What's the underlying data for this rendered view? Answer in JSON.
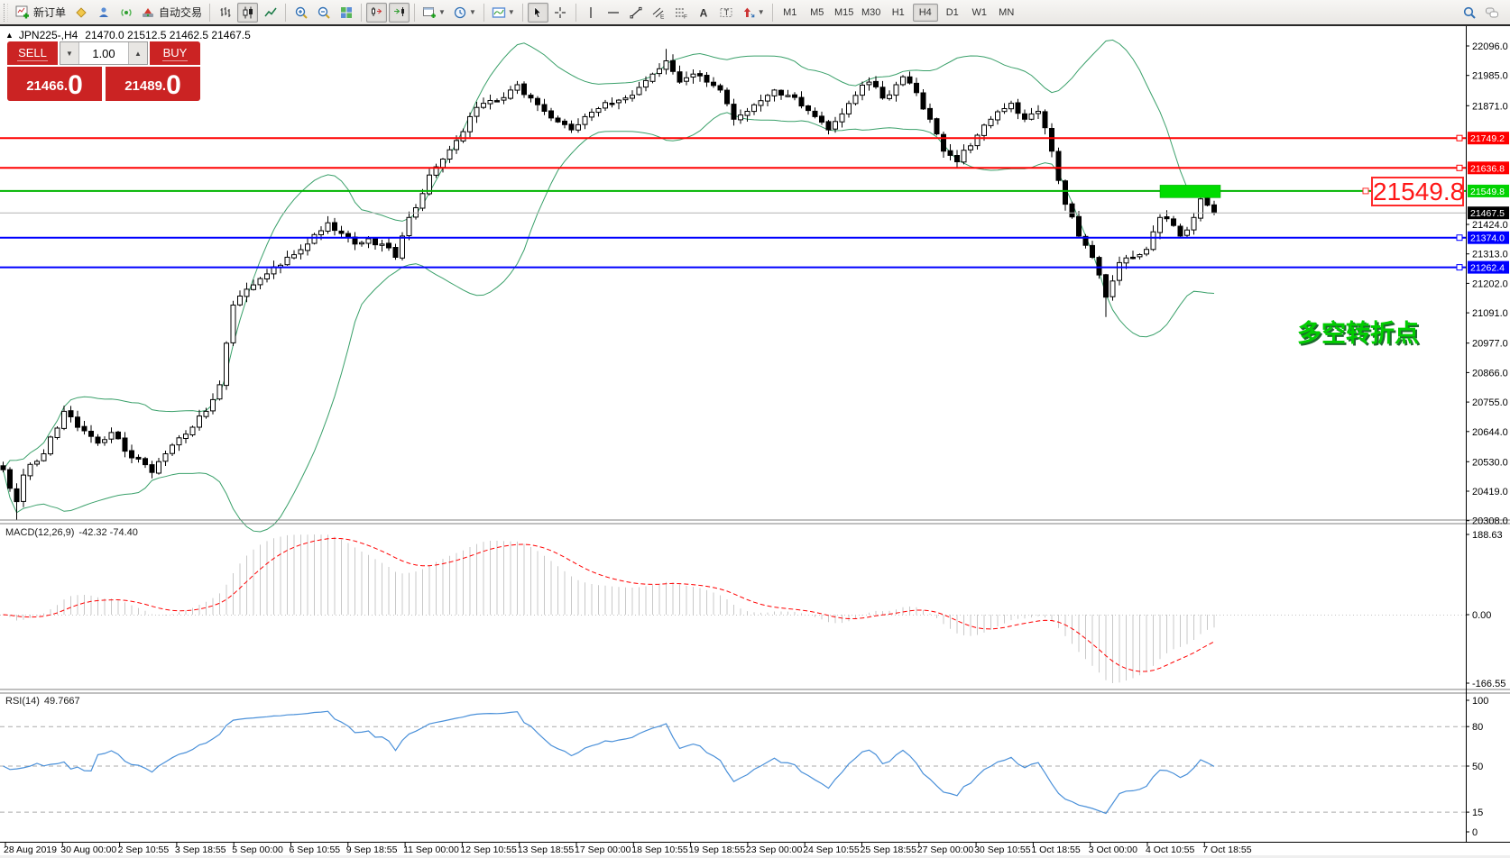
{
  "toolbar": {
    "buttons": [
      {
        "name": "new-order-button",
        "icon": "new-order-icon",
        "label": "新订单",
        "group": 0
      },
      {
        "name": "metaeditor-button",
        "icon": "metaeditor-icon",
        "group": 0
      },
      {
        "name": "community-button",
        "icon": "community-icon",
        "group": 0
      },
      {
        "name": "signals-button",
        "icon": "signals-icon",
        "group": 0
      },
      {
        "name": "autotrading-button",
        "icon": "autotrading-icon",
        "label": "自动交易",
        "group": 0
      },
      {
        "name": "chart-bars-button",
        "icon": "bar-chart-icon",
        "group": 1
      },
      {
        "name": "chart-candles-button",
        "icon": "candlestick-icon",
        "group": 1,
        "pressed": true
      },
      {
        "name": "chart-line-button",
        "icon": "line-chart-icon",
        "group": 1
      },
      {
        "name": "zoom-in-button",
        "icon": "zoom-in-icon",
        "group": 2
      },
      {
        "name": "zoom-out-button",
        "icon": "zoom-out-icon",
        "group": 2
      },
      {
        "name": "tile-windows-button",
        "icon": "tile-windows-icon",
        "group": 2
      },
      {
        "name": "chart-shift-button",
        "icon": "chart-shift-icon",
        "group": 3,
        "pressed": true
      },
      {
        "name": "auto-scroll-button",
        "icon": "auto-scroll-icon",
        "group": 3,
        "pressed": true
      },
      {
        "name": "new-chart-button",
        "icon": "new-chart-icon",
        "dropdown": true,
        "group": 4
      },
      {
        "name": "periods-button",
        "icon": "clock-icon",
        "dropdown": true,
        "group": 4
      },
      {
        "name": "templates-button",
        "icon": "templates-icon",
        "dropdown": true,
        "group": 5
      },
      {
        "name": "cursor-button",
        "icon": "cursor-icon",
        "group": 6,
        "pressed": true
      },
      {
        "name": "crosshair-button",
        "icon": "crosshair-icon",
        "group": 6
      },
      {
        "name": "vertical-line-button",
        "icon": "vertical-line-icon",
        "group": 7
      },
      {
        "name": "horizontal-line-button",
        "icon": "horizontal-line-icon",
        "group": 7
      },
      {
        "name": "trendline-button",
        "icon": "trendline-icon",
        "group": 7
      },
      {
        "name": "channel-button",
        "icon": "channel-icon",
        "group": 7
      },
      {
        "name": "fibonacci-button",
        "icon": "fibonacci-icon",
        "group": 7
      },
      {
        "name": "text-button",
        "icon": "text-a-icon",
        "group": 7
      },
      {
        "name": "text-label-button",
        "icon": "text-label-icon",
        "group": 7
      },
      {
        "name": "arrows-button",
        "icon": "arrows-icon",
        "dropdown": true,
        "group": 7
      }
    ],
    "timeframes": {
      "options": [
        "M1",
        "M5",
        "M15",
        "M30",
        "H1",
        "H4",
        "D1",
        "W1",
        "MN"
      ],
      "active": "H4"
    },
    "right_buttons": [
      {
        "name": "search-button",
        "icon": "search-icon"
      },
      {
        "name": "chat-button",
        "icon": "chat-icon"
      }
    ]
  },
  "symbol_bar": {
    "collapse": "▲",
    "symbol": "JPN225-,H4",
    "ohlc": "21470.0 21512.5 21462.5 21467.5"
  },
  "trade_panel": {
    "sell_label": "SELL",
    "buy_label": "BUY",
    "volume": "1.00",
    "volume_down": "▼",
    "volume_up": "▲",
    "sell_price_main": "21466.",
    "sell_price_big": "0",
    "buy_price_main": "21489.",
    "buy_price_big": "0"
  },
  "macd_panel": {
    "label": "MACD(12,26,9)",
    "values": "-42.32 -74.40",
    "axis_labels": [
      "188.63",
      "0.00",
      "-166.55"
    ]
  },
  "rsi_panel": {
    "label": "RSI(14)",
    "value": "49.7667",
    "axis_labels": [
      "100",
      "80",
      "50",
      "15",
      "0"
    ]
  },
  "annotations": {
    "big_price": "21549.8",
    "turning_point": "多空转折点"
  },
  "colors": {
    "up_candle": "#ffffff",
    "down_candle": "#000000",
    "candle_border": "#000000",
    "bollinger": "#3aa06a",
    "resistance_line": "#ff0000",
    "support_line": "#0000ff",
    "pivot_line": "#00b400",
    "pivot_label_bg": "#00d300",
    "current_price_line": "#b4b4b4",
    "macd_histogram": "#c8c8c8",
    "macd_signal": "#ff0000",
    "rsi_line": "#4a90d9",
    "level_dash": "#ababab",
    "sell_buy_red": "#cb2323"
  },
  "chart_data": {
    "type": "candlestick",
    "symbol": "JPN225-,H4",
    "title": "JPN225 Nikkei 225 CFD, 4-hour candles with Bollinger Bands, MACD(12,26,9), RSI(14)",
    "count": 180,
    "last_close": 21467.5,
    "price_ticks": [
      22096.0,
      21985.0,
      21871.0,
      21424.0,
      21313.0,
      21202.0,
      21091.0,
      20977.0,
      20866.0,
      20755.0,
      20644.0,
      20530.0,
      20419.0,
      20308.0
    ],
    "price_range": [
      20308.0,
      22096.0
    ],
    "levels": [
      {
        "price": 21749.2,
        "label": "21749.2",
        "color": "#ff0000",
        "width": 2
      },
      {
        "price": 21636.8,
        "label": "21636.8",
        "color": "#ff0000",
        "width": 2
      },
      {
        "price": 21549.8,
        "label": "21549.8",
        "color": "#00b400",
        "width": 2,
        "label_bg": "#00d300"
      },
      {
        "price": 21467.5,
        "label": "21467.5",
        "color": "#b4b4b4",
        "width": 1,
        "label_bg": "#000000",
        "no_handle": true
      },
      {
        "price": 21374.0,
        "label": "21374.0",
        "color": "#0000ff",
        "width": 2
      },
      {
        "price": 21262.4,
        "label": "21262.4",
        "color": "#0000ff",
        "width": 2
      }
    ],
    "green_zone_box": {
      "price": 21549.8,
      "note": "highlight rectangle on pivot line"
    },
    "close_anchors": [
      [
        0,
        20500
      ],
      [
        1,
        20430
      ],
      [
        2,
        20380
      ],
      [
        3,
        20480
      ],
      [
        4,
        20520
      ],
      [
        6,
        20560
      ],
      [
        9,
        20720
      ],
      [
        11,
        20660
      ],
      [
        14,
        20600
      ],
      [
        16,
        20640
      ],
      [
        18,
        20570
      ],
      [
        20,
        20540
      ],
      [
        22,
        20490
      ],
      [
        24,
        20560
      ],
      [
        26,
        20620
      ],
      [
        28,
        20660
      ],
      [
        30,
        20720
      ],
      [
        32,
        20820
      ],
      [
        34,
        21120
      ],
      [
        36,
        21180
      ],
      [
        38,
        21220
      ],
      [
        41,
        21270
      ],
      [
        43,
        21310
      ],
      [
        45,
        21350
      ],
      [
        47,
        21400
      ],
      [
        48,
        21430
      ],
      [
        50,
        21390
      ],
      [
        52,
        21350
      ],
      [
        54,
        21370
      ],
      [
        56,
        21350
      ],
      [
        58,
        21300
      ],
      [
        59,
        21380
      ],
      [
        60,
        21450
      ],
      [
        62,
        21540
      ],
      [
        63,
        21610
      ],
      [
        65,
        21670
      ],
      [
        67,
        21740
      ],
      [
        69,
        21830
      ],
      [
        71,
        21880
      ],
      [
        73,
        21890
      ],
      [
        75,
        21930
      ],
      [
        76,
        21950
      ],
      [
        78,
        21900
      ],
      [
        80,
        21850
      ],
      [
        82,
        21810
      ],
      [
        84,
        21780
      ],
      [
        86,
        21830
      ],
      [
        88,
        21860
      ],
      [
        90,
        21880
      ],
      [
        92,
        21900
      ],
      [
        94,
        21940
      ],
      [
        96,
        21990
      ],
      [
        98,
        22040
      ],
      [
        99,
        22000
      ],
      [
        100,
        21960
      ],
      [
        102,
        21990
      ],
      [
        104,
        21960
      ],
      [
        106,
        21930
      ],
      [
        108,
        21820
      ],
      [
        110,
        21850
      ],
      [
        112,
        21890
      ],
      [
        114,
        21930
      ],
      [
        116,
        21910
      ],
      [
        118,
        21870
      ],
      [
        120,
        21830
      ],
      [
        122,
        21780
      ],
      [
        124,
        21840
      ],
      [
        126,
        21910
      ],
      [
        128,
        21960
      ],
      [
        130,
        21900
      ],
      [
        132,
        21950
      ],
      [
        133,
        21980
      ],
      [
        135,
        21920
      ],
      [
        137,
        21820
      ],
      [
        139,
        21700
      ],
      [
        141,
        21660
      ],
      [
        143,
        21720
      ],
      [
        146,
        21820
      ],
      [
        148,
        21860
      ],
      [
        149,
        21880
      ],
      [
        151,
        21820
      ],
      [
        153,
        21850
      ],
      [
        155,
        21700
      ],
      [
        157,
        21500
      ],
      [
        159,
        21380
      ],
      [
        161,
        21300
      ],
      [
        163,
        21150
      ],
      [
        165,
        21280
      ],
      [
        167,
        21300
      ],
      [
        169,
        21330
      ],
      [
        171,
        21450
      ],
      [
        173,
        21420
      ],
      [
        174,
        21380
      ],
      [
        176,
        21450
      ],
      [
        177,
        21520
      ],
      [
        179,
        21467.5
      ]
    ],
    "wick_overrides": [
      [
        2,
        "low",
        20310
      ],
      [
        98,
        "high",
        22085
      ],
      [
        163,
        "low",
        21075
      ],
      [
        177,
        "high",
        21562
      ]
    ],
    "indicators": [
      {
        "name": "Bollinger Bands",
        "period": 20,
        "deviation": 2
      },
      {
        "name": "MACD",
        "parameters": "12,26,9",
        "current_values": "-42.32 -74.40",
        "scale_max": 188.63,
        "scale_zero": 0.0,
        "scale_min": -166.55
      },
      {
        "name": "RSI",
        "period": 14,
        "current_value": 49.7667,
        "levels": [
          80,
          50,
          15
        ],
        "range": [
          0,
          100
        ]
      }
    ],
    "date_labels": [
      "28 Aug 2019",
      "30 Aug 00:00",
      "2 Sep 10:55",
      "3 Sep 18:55",
      "5 Sep 00:00",
      "6 Sep 10:55",
      "9 Sep 18:55",
      "11 Sep 00:00",
      "12 Sep 10:55",
      "13 Sep 18:55",
      "17 Sep 00:00",
      "18 Sep 10:55",
      "19 Sep 18:55",
      "23 Sep 00:00",
      "24 Sep 10:55",
      "25 Sep 18:55",
      "27 Sep 00:00",
      "30 Sep 10:55",
      "1 Oct 18:55",
      "3 Oct 00:00",
      "4 Oct 10:55",
      "7 Oct 18:55"
    ]
  }
}
